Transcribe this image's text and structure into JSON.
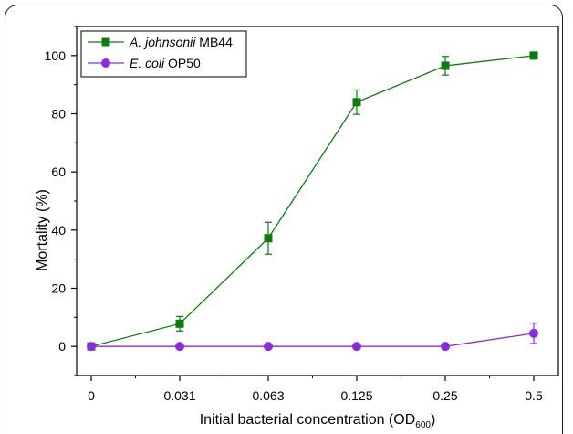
{
  "chart_data": {
    "type": "line",
    "categories": [
      "0",
      "0.031",
      "0.063",
      "0.125",
      "0.25",
      "0.5"
    ],
    "ylabel": "Mortality (%)",
    "xlabel_main": "Initial bacterial concentration (OD",
    "xlabel_sub": "600",
    "xlabel_close": ")",
    "ylim": [
      -10,
      110
    ],
    "yticks": [
      0,
      20,
      40,
      60,
      80,
      100
    ],
    "grid": false,
    "legend_position": "top-left",
    "series": [
      {
        "name_italic": "A. johnsonii",
        "name_rest": " MB44",
        "color": "#0b7d0b",
        "marker": "square",
        "values": [
          0,
          7.8,
          37.2,
          84.0,
          96.5,
          100
        ],
        "errors": [
          0,
          2.5,
          5.5,
          4.2,
          3.2,
          0
        ]
      },
      {
        "name_italic": "E. coli",
        "name_rest": " OP50",
        "color": "#8a2be2",
        "marker": "circle",
        "values": [
          0,
          0,
          0,
          0,
          0,
          4.5
        ],
        "errors": [
          0,
          0,
          0,
          0,
          0,
          3.5
        ]
      }
    ]
  }
}
